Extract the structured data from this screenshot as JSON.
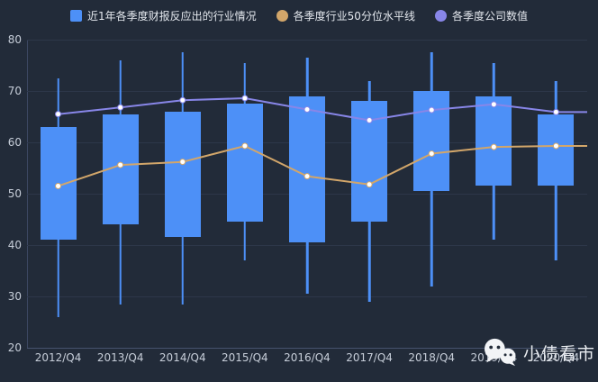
{
  "colors": {
    "background": "#222b39",
    "grid_line": "#2d3749",
    "axis_line": "#46526d",
    "axis_label": "#c7ced9",
    "legend_text": "#e4e8ee",
    "candle": "#4d90f7",
    "median_line": "#d2a66a",
    "company_line": "#8886e8",
    "marker_fill": "#ffffff",
    "watermark_text": "#e9ecf0"
  },
  "legend": {
    "items": [
      {
        "label": "近1年各季度财报反应出的行业情况",
        "marker": "square",
        "color": "#4d90f7"
      },
      {
        "label": "各季度行业50分位水平线",
        "marker": "circle",
        "color": "#d2a66a"
      },
      {
        "label": "各季度公司数值",
        "marker": "circle",
        "color": "#8886e8"
      }
    ]
  },
  "watermark": {
    "text": "小债看市",
    "icon": "wechat-icon"
  },
  "chart_data": {
    "type": "candlestick",
    "title": "",
    "xlabel": "",
    "ylabel": "",
    "ylim": [
      20,
      80
    ],
    "yticks": [
      20,
      30,
      40,
      50,
      60,
      70,
      80
    ],
    "grid": true,
    "legend_position": "top-center",
    "categories": [
      "2012/Q4",
      "2013/Q4",
      "2014/Q4",
      "2015/Q4",
      "2016/Q4",
      "2017/Q4",
      "2018/Q4",
      "2019/Q4",
      "2020/Q4"
    ],
    "series": [
      {
        "name": "近1年各季度财报反应出的行业情况",
        "type": "candlestick",
        "color": "#4d90f7",
        "values": [
          {
            "low": 26.0,
            "box_low": 41.0,
            "box_high": 63.0,
            "high": 72.5
          },
          {
            "low": 28.5,
            "box_low": 44.0,
            "box_high": 65.5,
            "high": 76.0
          },
          {
            "low": 28.5,
            "box_low": 41.5,
            "box_high": 66.0,
            "high": 77.5
          },
          {
            "low": 37.0,
            "box_low": 44.5,
            "box_high": 67.5,
            "high": 75.5
          },
          {
            "low": 30.5,
            "box_low": 40.5,
            "box_high": 69.0,
            "high": 76.5
          },
          {
            "low": 29.0,
            "box_low": 44.5,
            "box_high": 68.0,
            "high": 72.0
          },
          {
            "low": 32.0,
            "box_low": 50.5,
            "box_high": 70.0,
            "high": 77.5
          },
          {
            "low": 41.0,
            "box_low": 51.5,
            "box_high": 69.0,
            "high": 75.5
          },
          {
            "low": 37.0,
            "box_low": 51.5,
            "box_high": 65.5,
            "high": 72.0
          }
        ]
      },
      {
        "name": "各季度行业50分位水平线",
        "type": "line",
        "color": "#d2a66a",
        "values": [
          51.5,
          55.6,
          56.2,
          59.3,
          53.4,
          51.8,
          57.8,
          59.1,
          59.3
        ]
      },
      {
        "name": "各季度公司数值",
        "type": "line",
        "color": "#8886e8",
        "values": [
          65.5,
          66.8,
          68.2,
          68.6,
          66.4,
          64.3,
          66.3,
          67.4,
          65.9
        ]
      }
    ]
  }
}
